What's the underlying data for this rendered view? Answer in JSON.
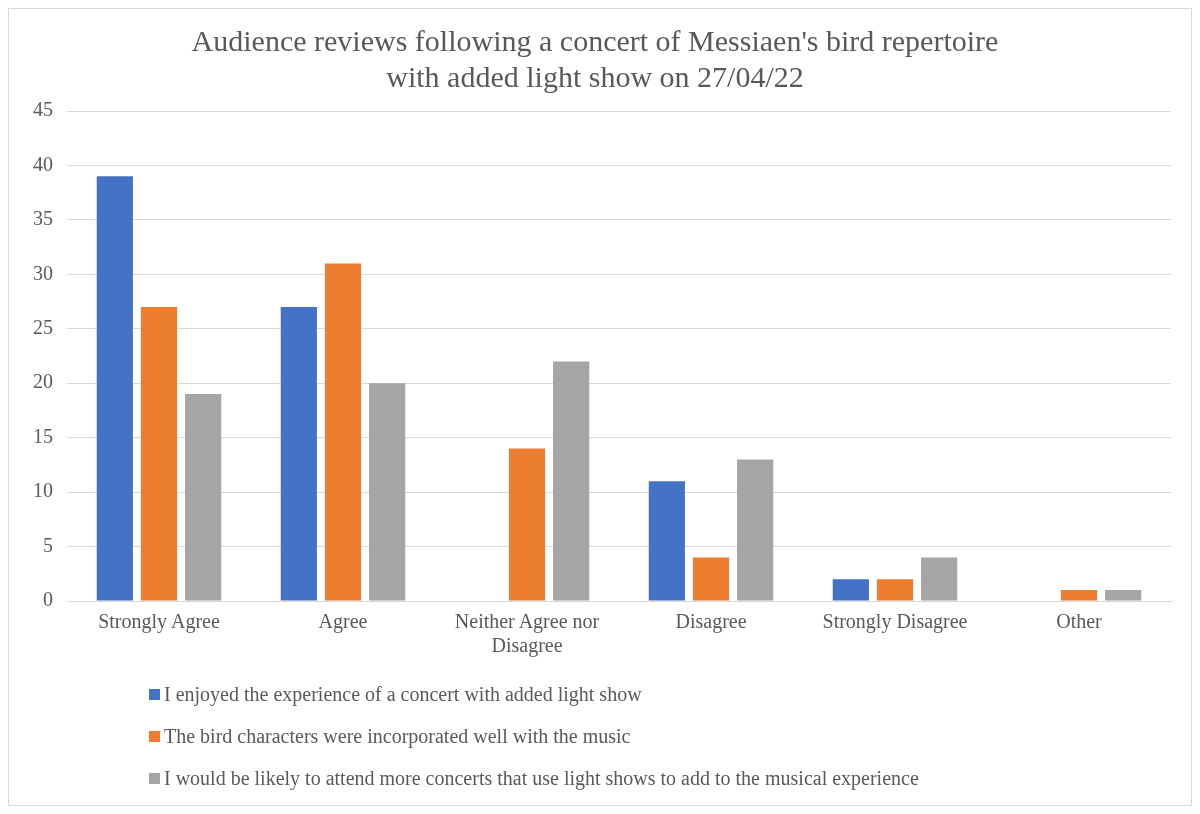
{
  "chart_data": {
    "type": "bar",
    "title": "Audience reviews following a concert of Messiaen's bird repertoire with added light show on 27/04/22",
    "categories": [
      "Strongly Agree",
      "Agree",
      "Neither Agree nor Disagree",
      "Disagree",
      "Strongly Disagree",
      "Other"
    ],
    "series": [
      {
        "name": "I enjoyed the experience of a concert with added light show",
        "color": "#4472c4",
        "values": [
          39,
          27,
          0,
          11,
          2,
          0
        ]
      },
      {
        "name": "The bird characters were incorporated well with the music",
        "color": "#ed7d31",
        "values": [
          27,
          31,
          14,
          4,
          2,
          1
        ]
      },
      {
        "name": "I would be likely to attend more concerts that use light shows to add to the musical experience",
        "color": "#a5a5a5",
        "values": [
          19,
          20,
          22,
          13,
          4,
          1
        ]
      }
    ],
    "ylim": [
      0,
      45
    ],
    "yticks": [
      0,
      5,
      10,
      15,
      20,
      25,
      30,
      35,
      40,
      45
    ],
    "grid": "y",
    "legend": "bottom"
  }
}
